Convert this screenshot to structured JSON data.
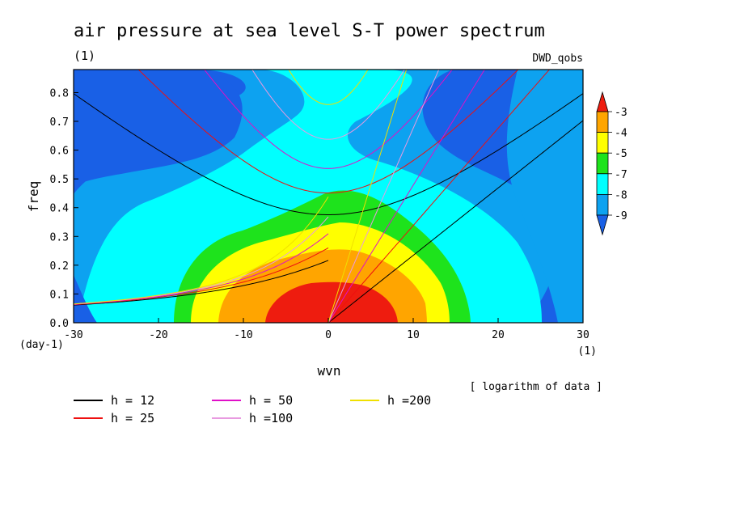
{
  "chart_data": {
    "type": "heatmap",
    "title": "air pressure at sea level S-T power spectrum",
    "units_label": "(1)",
    "model_label": "DWD_qobs",
    "xlabel": "wvn",
    "x_unit": "(1)",
    "ylabel": "freq",
    "y_unit": "(day-1)",
    "xlim": [
      -30,
      30
    ],
    "ylim": [
      0,
      0.88
    ],
    "x_ticks": [
      "-30",
      "-20",
      "-10",
      "0",
      "10",
      "20",
      "30"
    ],
    "y_ticks": [
      "0.0",
      "0.1",
      "0.2",
      "0.3",
      "0.4",
      "0.5",
      "0.6",
      "0.7",
      "0.8"
    ],
    "note": "[ logarithm of data ]",
    "colorbar": {
      "labels": [
        "-3",
        "-4",
        "-5",
        "-7",
        "-8",
        "-9"
      ],
      "colors": [
        "#ee1c0f",
        "#ffa500",
        "#ffff00",
        "#1ee31c",
        "#00ffff",
        "#0da2f0",
        "#1960e6"
      ]
    },
    "field": {
      "peak": {
        "wvn": 2,
        "freq": 0.0,
        "value": -3
      },
      "levels": [
        -3,
        -4,
        -5,
        -7,
        -8,
        -9
      ]
    },
    "dispersion_curves": [
      {
        "label": "h = 12",
        "h": 12,
        "color": "#000000"
      },
      {
        "label": "h = 25",
        "h": 25,
        "color": "#ee1010"
      },
      {
        "label": "h = 50",
        "h": 50,
        "color": "#e010c8"
      },
      {
        "label": "h =100",
        "h": 100,
        "color": "#e89ae0"
      },
      {
        "label": "h =200",
        "h": 200,
        "color": "#f0e000"
      }
    ]
  }
}
